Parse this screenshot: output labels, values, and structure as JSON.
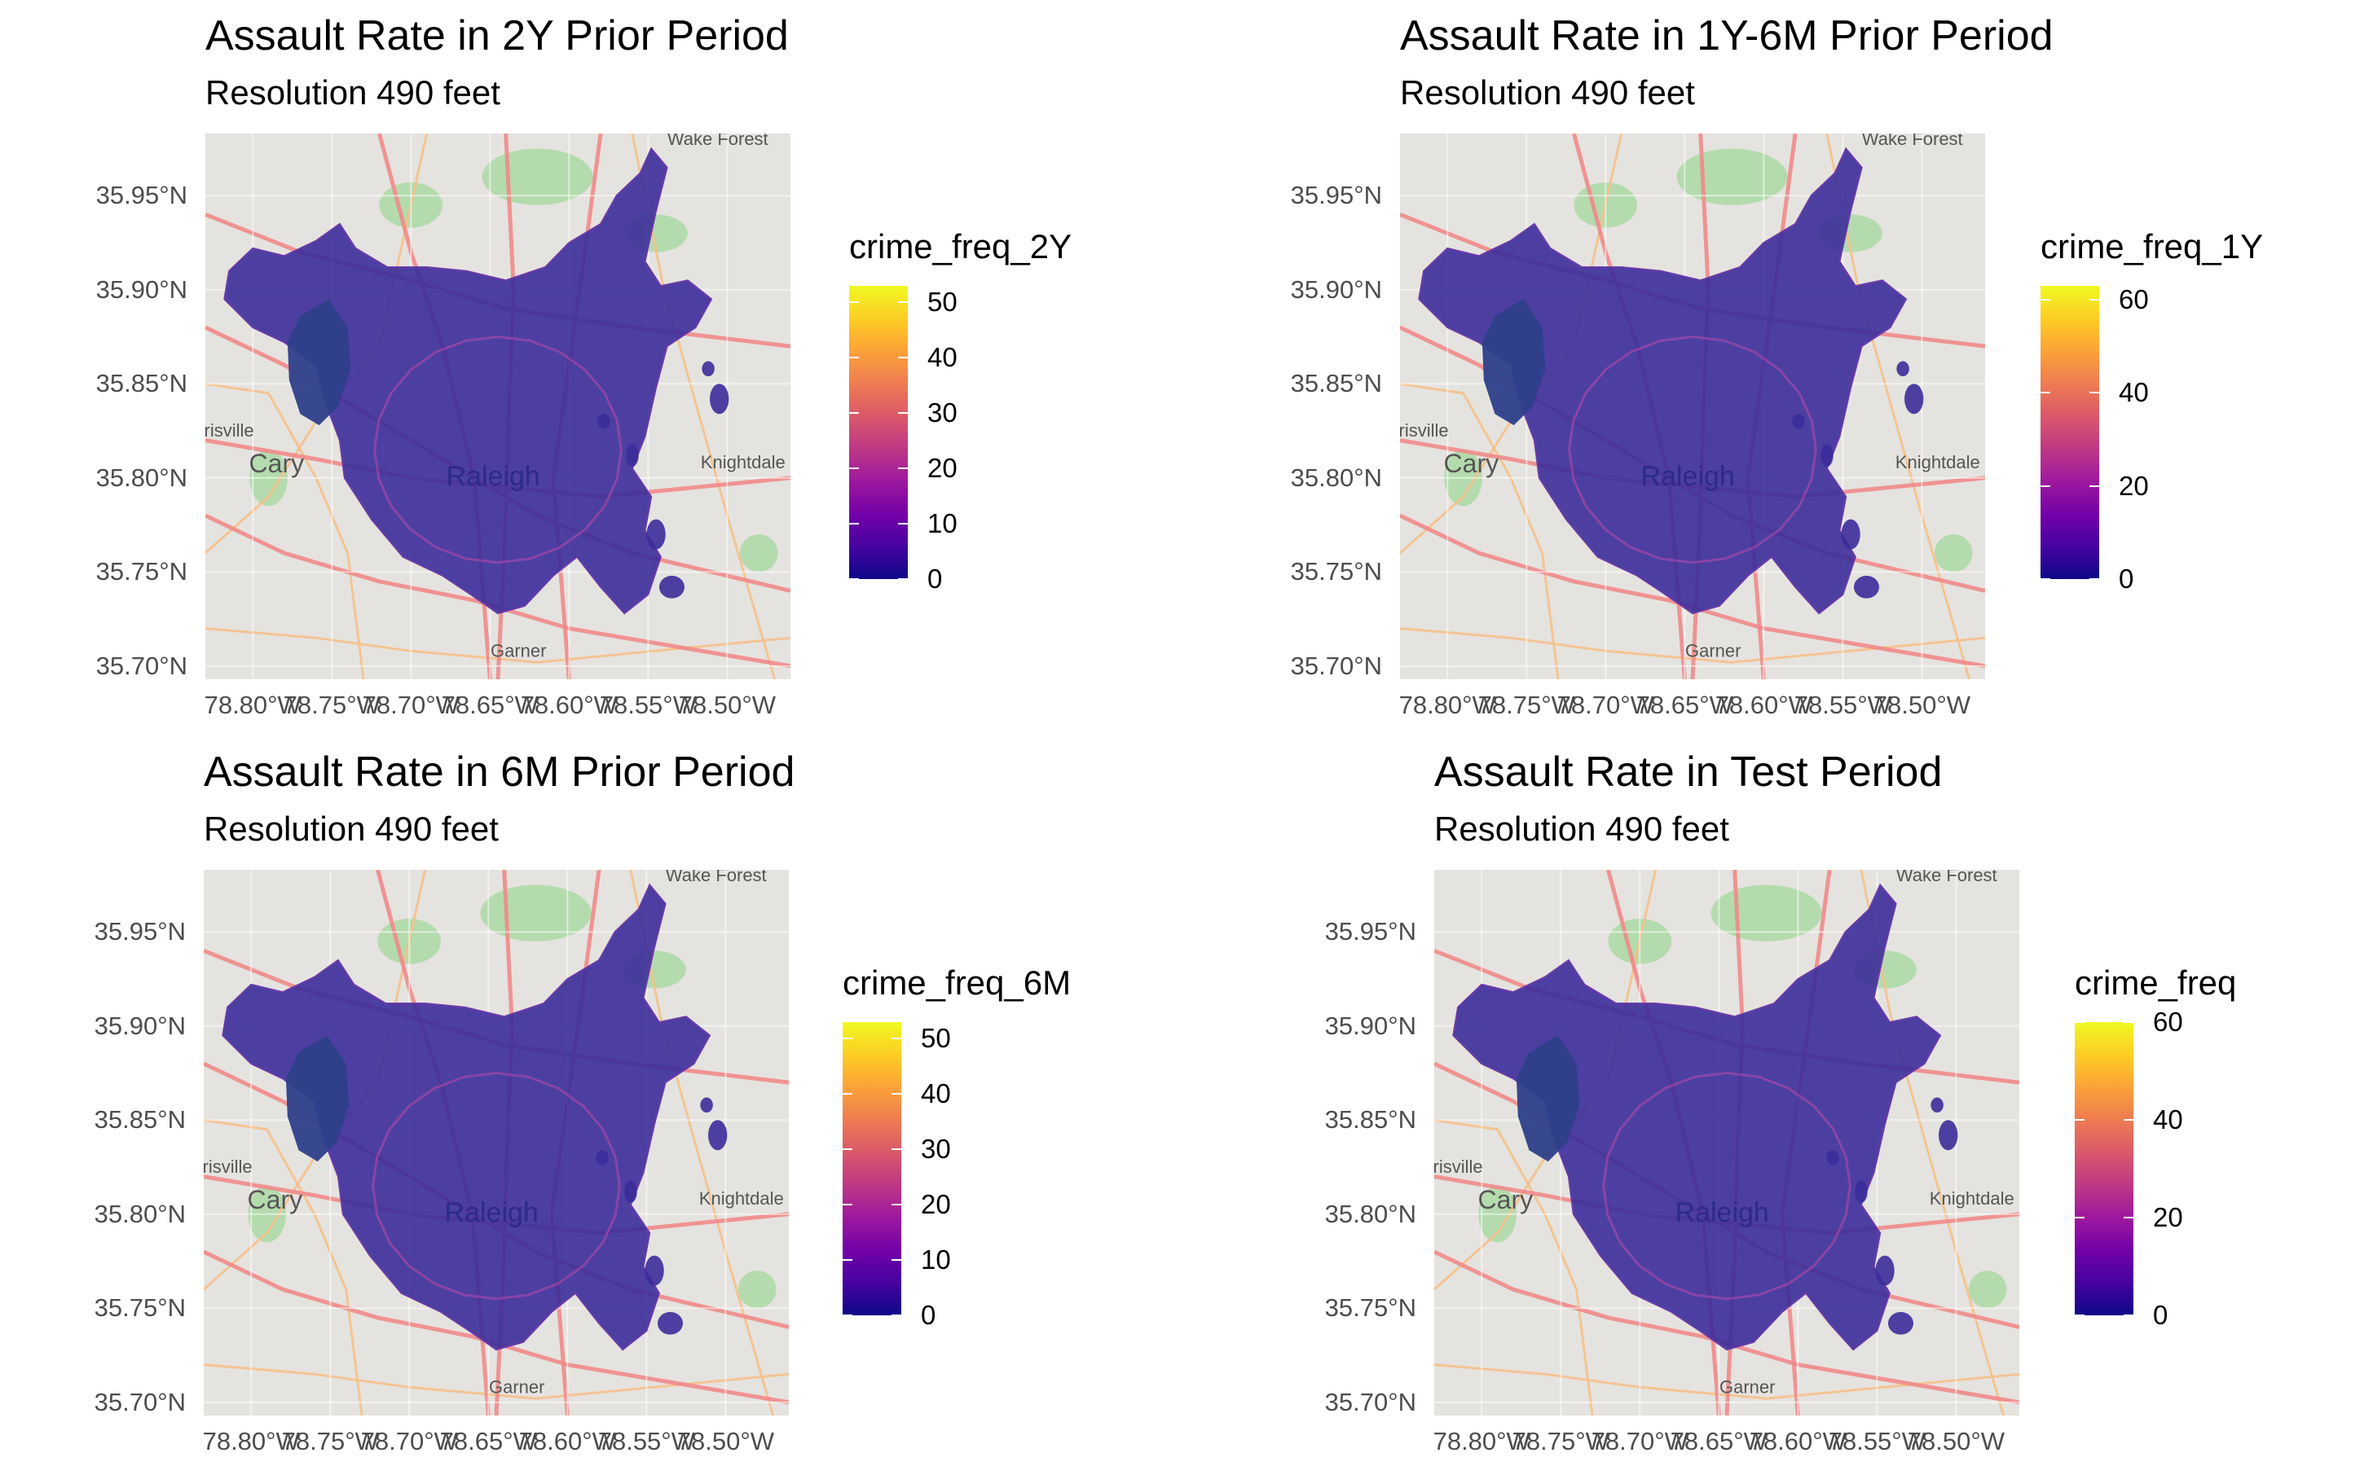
{
  "panels": [
    {
      "title": "Assault Rate in 2Y Prior Period",
      "subtitle": "Resolution 490 feet",
      "legend_title": "crime_freq_2Y",
      "legend_ticks": [
        "0",
        "10",
        "20",
        "30",
        "40",
        "50"
      ],
      "legend_max": 53
    },
    {
      "title": "Assault Rate in 1Y-6M Prior Period",
      "subtitle": "Resolution 490 feet",
      "legend_title": "crime_freq_1Y",
      "legend_ticks": [
        "0",
        "20",
        "40",
        "60"
      ],
      "legend_max": 63
    },
    {
      "title": "Assault Rate in 6M Prior Period",
      "subtitle": "Resolution 490 feet",
      "legend_title": "crime_freq_6M",
      "legend_ticks": [
        "0",
        "10",
        "20",
        "30",
        "40",
        "50"
      ],
      "legend_max": 53
    },
    {
      "title": "Assault Rate in Test Period",
      "subtitle": "Resolution 490 feet",
      "legend_title": "crime_freq",
      "legend_ticks": [
        "0",
        "20",
        "40",
        "60"
      ],
      "legend_max": 60
    }
  ],
  "y_ticks": [
    "35.95°N",
    "35.90°N",
    "35.85°N",
    "35.80°N",
    "35.75°N",
    "35.70°N"
  ],
  "x_ticks": [
    "78.80°W",
    "78.75°W",
    "78.70°W",
    "78.65°W",
    "78.60°W",
    "78.55°W",
    "78.50°W"
  ],
  "map_labels": {
    "city": "Raleigh",
    "town1": "Cary",
    "town2": "Knightdale",
    "town3": "Garner",
    "town4": "Wake Forest",
    "town5": "risville"
  },
  "colors": {
    "fill": "#3b2c9a",
    "fill_edge": "#6a3aa8",
    "basemap": "#e5e3df",
    "road": "#f08a8a",
    "minor_road": "#f5c08a",
    "park": "#a8d8a0",
    "scale": [
      "#0d0887",
      "#7201a8",
      "#bd3786",
      "#ed7953",
      "#f0f921"
    ]
  }
}
